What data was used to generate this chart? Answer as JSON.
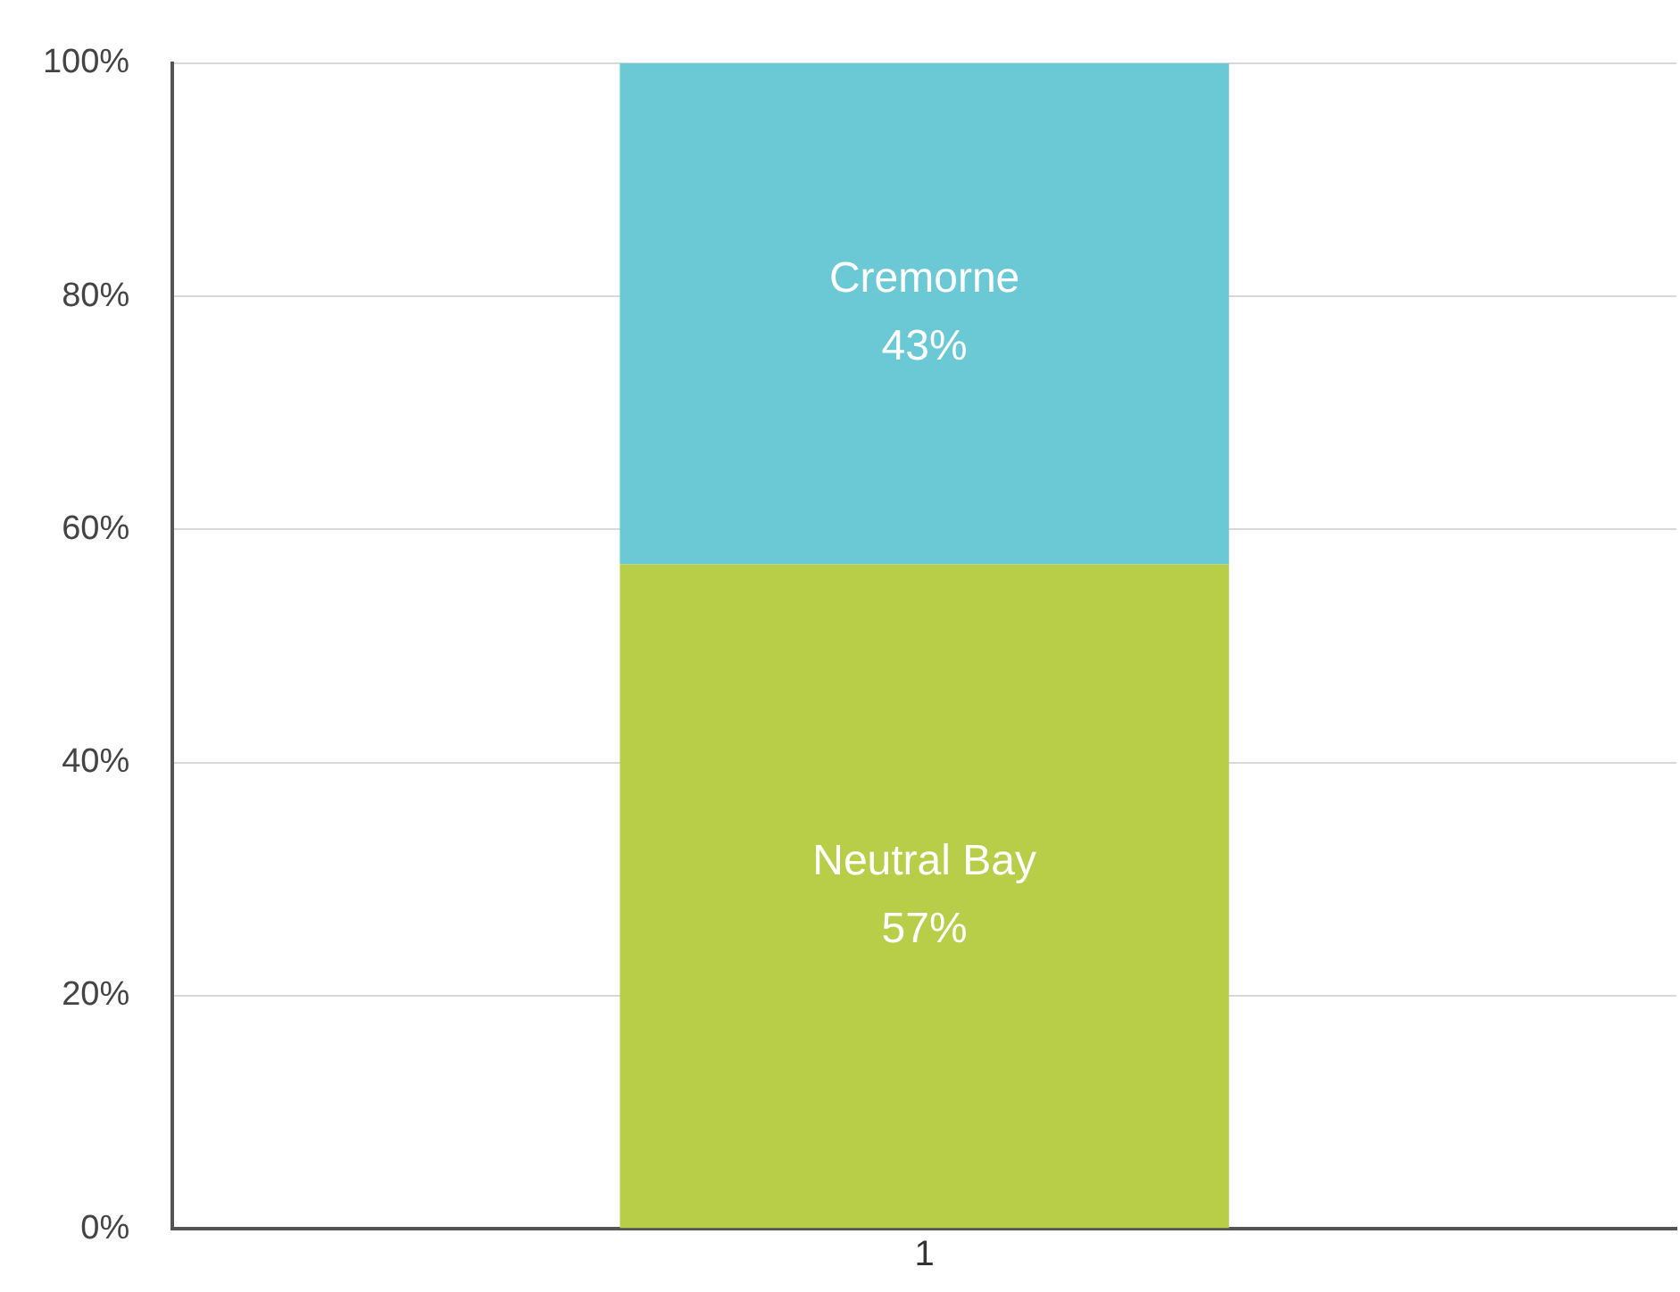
{
  "chart_data": {
    "type": "bar",
    "stacked": true,
    "categories": [
      "1"
    ],
    "series": [
      {
        "name": "Neutral Bay",
        "color": "#b8cd48",
        "values": [
          57
        ],
        "value_labels": [
          "57%"
        ]
      },
      {
        "name": "Cremorne",
        "color": "#6bc9d6",
        "values": [
          43
        ],
        "value_labels": [
          "43%"
        ]
      }
    ],
    "ylim": [
      0,
      100
    ],
    "yticks": [
      {
        "value": 0,
        "label": "0%"
      },
      {
        "value": 20,
        "label": "20%"
      },
      {
        "value": 40,
        "label": "40%"
      },
      {
        "value": 60,
        "label": "60%"
      },
      {
        "value": 80,
        "label": "80%"
      },
      {
        "value": 100,
        "label": "100%"
      }
    ],
    "grid": "y",
    "legend": false
  }
}
